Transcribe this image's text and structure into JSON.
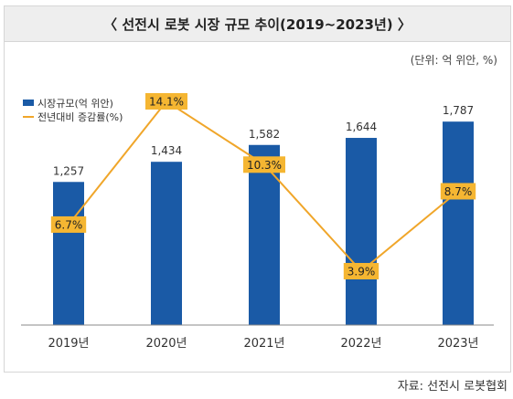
{
  "chart_data": {
    "type": "bar",
    "title": "〈 선전시 로봇 시장 규모 추이(2019~2023년) 〉",
    "unit_label": "(단위: 억 위안, %)",
    "categories": [
      "2019년",
      "2020년",
      "2021년",
      "2022년",
      "2023년"
    ],
    "series": [
      {
        "name": "시장규모(억 위안)",
        "type": "bar",
        "values": [
          1257,
          1434,
          1582,
          1644,
          1787
        ],
        "labels": [
          "1,257",
          "1,434",
          "1,582",
          "1,644",
          "1,787"
        ],
        "color": "#1a5aa6"
      },
      {
        "name": "전년대비 증감률(%)",
        "type": "line",
        "values": [
          6.7,
          14.1,
          10.3,
          3.9,
          8.7
        ],
        "labels": [
          "6.7%",
          "14.1%",
          "10.3%",
          "3.9%",
          "8.7%"
        ],
        "color": "#f0a62a"
      }
    ],
    "ylim_bar": [
      0,
      2000
    ],
    "ylim_line": [
      0,
      15
    ],
    "grid": false,
    "legend_position": "top-left",
    "source": "자료: 선전시 로봇협회"
  }
}
